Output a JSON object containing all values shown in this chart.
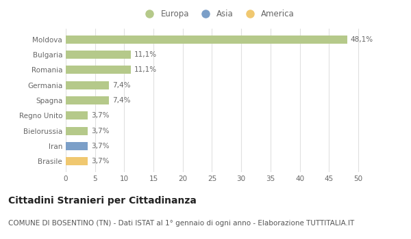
{
  "categories": [
    "Brasile",
    "Iran",
    "Bielorussia",
    "Regno Unito",
    "Spagna",
    "Germania",
    "Romania",
    "Bulgaria",
    "Moldova"
  ],
  "values": [
    3.7,
    3.7,
    3.7,
    3.7,
    7.4,
    7.4,
    11.1,
    11.1,
    48.1
  ],
  "colors": [
    "#f0c870",
    "#7b9fc8",
    "#b5c98a",
    "#b5c98a",
    "#b5c98a",
    "#b5c98a",
    "#b5c98a",
    "#b5c98a",
    "#b5c98a"
  ],
  "labels": [
    "3,7%",
    "3,7%",
    "3,7%",
    "3,7%",
    "7,4%",
    "7,4%",
    "11,1%",
    "11,1%",
    "48,1%"
  ],
  "legend": [
    {
      "label": "Europa",
      "color": "#b5c98a"
    },
    {
      "label": "Asia",
      "color": "#7b9fc8"
    },
    {
      "label": "America",
      "color": "#f0c870"
    }
  ],
  "xlim": [
    0,
    52
  ],
  "xticks": [
    0,
    5,
    10,
    15,
    20,
    25,
    30,
    35,
    40,
    45,
    50
  ],
  "title": "Cittadini Stranieri per Cittadinanza",
  "subtitle": "COMUNE DI BOSENTINO (TN) - Dati ISTAT al 1° gennaio di ogni anno - Elaborazione TUTTITALIA.IT",
  "bg_color": "#ffffff",
  "grid_color": "#e0e0e0",
  "bar_height": 0.55,
  "title_fontsize": 10,
  "subtitle_fontsize": 7.5,
  "label_fontsize": 7.5,
  "tick_fontsize": 7.5,
  "legend_fontsize": 8.5
}
